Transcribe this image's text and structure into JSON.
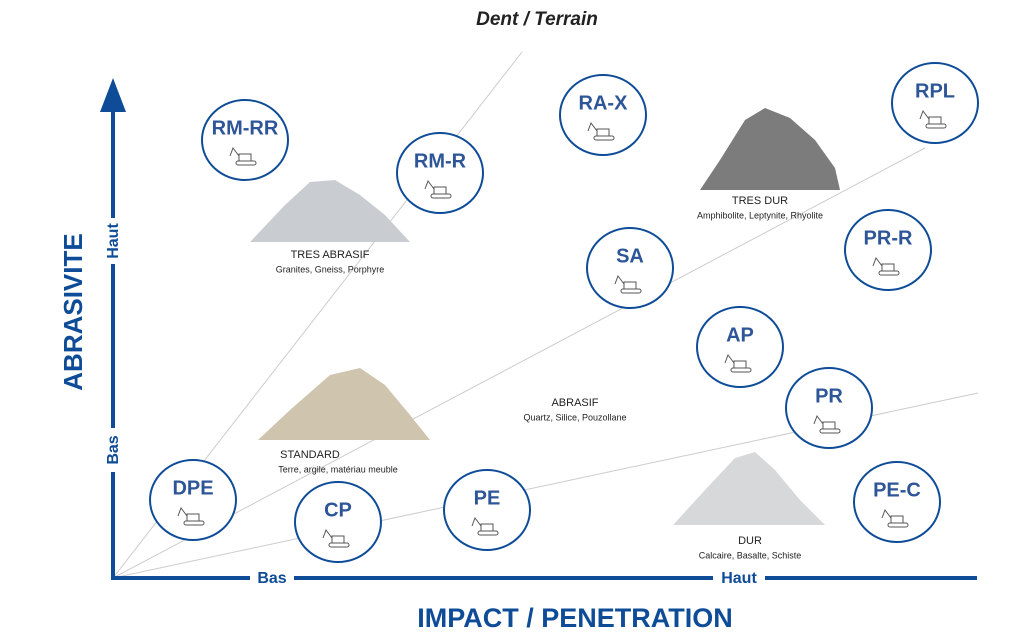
{
  "header": {
    "title": "Dent / Terrain"
  },
  "axes": {
    "y_label": "ABRASIVITE",
    "y_low": "Bas",
    "y_high": "Haut",
    "x_label": "IMPACT / PENETRATION",
    "x_low": "Bas",
    "x_high": "Haut"
  },
  "materials": [
    {
      "name": "TRES ABRASIF",
      "examples": "Granites, Gneiss, Porphyre"
    },
    {
      "name": "TRES DUR",
      "examples": "Amphibolite, Leptynite, Rhyolite"
    },
    {
      "name": "ABRASIF",
      "examples": "Quartz, Silice, Pouzollane"
    },
    {
      "name": "STANDARD",
      "examples": "Terre, argile, matériau meuble"
    },
    {
      "name": "DUR",
      "examples": "Calcaire, Basalte, Schiste"
    }
  ],
  "nodes": [
    {
      "label": "RM-RR"
    },
    {
      "label": "RM-R"
    },
    {
      "label": "RA-X"
    },
    {
      "label": "RPL"
    },
    {
      "label": "SA"
    },
    {
      "label": "PR-R"
    },
    {
      "label": "AP"
    },
    {
      "label": "PR"
    },
    {
      "label": "DPE"
    },
    {
      "label": "CP"
    },
    {
      "label": "PE"
    },
    {
      "label": "PE-C"
    }
  ]
}
